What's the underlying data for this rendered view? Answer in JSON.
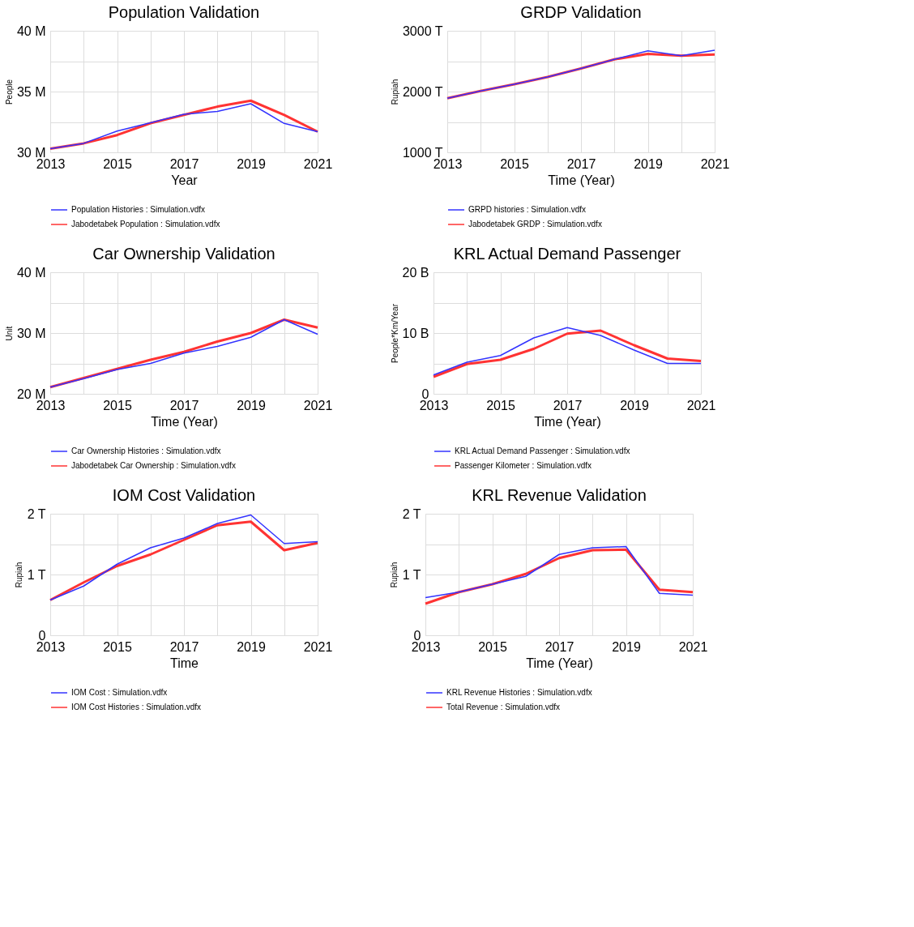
{
  "chart_data": [
    {
      "type": "line",
      "title": "Population Validation",
      "xlabel": "Year",
      "ylabel": "People",
      "x": [
        2013,
        2014,
        2015,
        2016,
        2017,
        2018,
        2019,
        2020,
        2021
      ],
      "series": [
        {
          "name": "Population Histories : Simulation.vdfx",
          "color": "#3333ff",
          "values": [
            30.3,
            30.74,
            31.75,
            32.44,
            33.14,
            33.37,
            34.0,
            32.38,
            31.7
          ]
        },
        {
          "name": "Jabodetabek Population : Simulation.vdfx",
          "color": "#ff3333",
          "values": [
            30.3,
            30.74,
            31.42,
            32.4,
            33.08,
            33.76,
            34.25,
            33.08,
            31.7
          ]
        }
      ],
      "xlim": [
        2013,
        2021
      ],
      "xticks": [
        2013,
        {
          "value": 2014,
          "label": null
        },
        2015,
        {
          "value": 2016,
          "label": null
        },
        2017,
        {
          "value": 2018,
          "label": null
        },
        2019,
        {
          "value": 2020,
          "label": null
        },
        2021
      ],
      "ylim": [
        30,
        40
      ],
      "yticks": [
        {
          "value": 30,
          "label": "30 M"
        },
        {
          "value": 32.5,
          "label": null
        },
        {
          "value": 35,
          "label": "35 M"
        },
        {
          "value": 37.5,
          "label": null
        },
        {
          "value": 40,
          "label": "40 M"
        }
      ],
      "grid": true,
      "legend": "bottom",
      "marker": "none",
      "line_style": "solid"
    },
    {
      "type": "line",
      "title": "GRDP Validation",
      "xlabel": "Time (Year)",
      "ylabel": "Rupiah",
      "x": [
        2013,
        2014,
        2015,
        2016,
        2017,
        2018,
        2019,
        2020,
        2021
      ],
      "series": [
        {
          "name": "GRPD histories : Simulation.vdfx",
          "color": "#3333ff",
          "values": [
            1890,
            2010,
            2120,
            2240,
            2380,
            2530,
            2670,
            2590,
            2680
          ]
        },
        {
          "name": "Jabodetabek GRDP : Simulation.vdfx",
          "color": "#ff3333",
          "values": [
            1890,
            2010,
            2120,
            2240,
            2380,
            2530,
            2620,
            2590,
            2610
          ]
        }
      ],
      "xlim": [
        2013,
        2021
      ],
      "xticks": [
        2013,
        {
          "value": 2014,
          "label": null
        },
        2015,
        {
          "value": 2016,
          "label": null
        },
        2017,
        {
          "value": 2018,
          "label": null
        },
        2019,
        {
          "value": 2020,
          "label": null
        },
        2021
      ],
      "ylim": [
        1000,
        3000
      ],
      "yticks": [
        {
          "value": 1000,
          "label": "1000 T"
        },
        {
          "value": 1500,
          "label": null
        },
        {
          "value": 2000,
          "label": "2000 T"
        },
        {
          "value": 2500,
          "label": null
        },
        {
          "value": 3000,
          "label": "3000 T"
        }
      ],
      "grid": true,
      "legend": "bottom",
      "marker": "none",
      "line_style": "solid"
    },
    {
      "type": "line",
      "title": "Car Ownership Validation",
      "xlabel": "Time (Year)",
      "ylabel": "Unit",
      "x": [
        2013,
        2014,
        2015,
        2016,
        2017,
        2018,
        2019,
        2020,
        2021
      ],
      "series": [
        {
          "name": "Car Ownership Histories : Simulation.vdfx",
          "color": "#3333ff",
          "values": [
            21.1,
            22.5,
            24.0,
            25.0,
            26.7,
            27.8,
            29.3,
            32.2,
            29.8
          ]
        },
        {
          "name": "Jabodetabek Car Ownership : Simulation.vdfx",
          "color": "#ff3333",
          "values": [
            21.1,
            22.6,
            24.1,
            25.6,
            26.9,
            28.6,
            30.0,
            32.2,
            30.9
          ]
        }
      ],
      "xlim": [
        2013,
        2021
      ],
      "xticks": [
        2013,
        {
          "value": 2014,
          "label": null
        },
        2015,
        {
          "value": 2016,
          "label": null
        },
        2017,
        {
          "value": 2018,
          "label": null
        },
        2019,
        {
          "value": 2020,
          "label": null
        },
        2021
      ],
      "ylim": [
        20,
        40
      ],
      "yticks": [
        {
          "value": 20,
          "label": "20 M"
        },
        {
          "value": 25,
          "label": null
        },
        {
          "value": 30,
          "label": "30 M"
        },
        {
          "value": 35,
          "label": null
        },
        {
          "value": 40,
          "label": "40 M"
        }
      ],
      "grid": true,
      "legend": "bottom",
      "marker": "none",
      "line_style": "solid"
    },
    {
      "type": "line",
      "title": "KRL Actual Demand Passenger",
      "xlabel": "Time (Year)",
      "ylabel": "People*Km/Year",
      "x": [
        2013,
        2014,
        2015,
        2016,
        2017,
        2018,
        2019,
        2020,
        2021
      ],
      "series": [
        {
          "name": "KRL Actual Demand Passenger : Simulation.vdfx",
          "color": "#3333ff",
          "values": [
            3.1,
            5.2,
            6.3,
            9.2,
            10.9,
            9.6,
            7.2,
            5.0,
            5.0
          ]
        },
        {
          "name": "Passenger Kilometer : Simulation.vdfx",
          "color": "#ff3333",
          "values": [
            2.8,
            4.9,
            5.6,
            7.4,
            9.9,
            10.4,
            8.0,
            5.8,
            5.4
          ]
        }
      ],
      "xlim": [
        2013,
        2021
      ],
      "xticks": [
        2013,
        {
          "value": 2014,
          "label": null
        },
        2015,
        {
          "value": 2016,
          "label": null
        },
        2017,
        {
          "value": 2018,
          "label": null
        },
        2019,
        {
          "value": 2020,
          "label": null
        },
        2021
      ],
      "ylim": [
        0,
        20
      ],
      "yticks": [
        0,
        {
          "value": 5,
          "label": null
        },
        {
          "value": 10,
          "label": "10 B"
        },
        {
          "value": 15,
          "label": null
        },
        {
          "value": 20,
          "label": "20 B"
        }
      ],
      "grid": true,
      "legend": "bottom",
      "marker": "none",
      "line_style": "solid"
    },
    {
      "type": "line",
      "title": "IOM Cost Validation",
      "xlabel": "Time",
      "ylabel": "Rupiah",
      "x": [
        2013,
        2014,
        2015,
        2016,
        2017,
        2018,
        2019,
        2020,
        2021
      ],
      "series": [
        {
          "name": "IOM Cost : Simulation.vdfx",
          "color": "#3333ff",
          "values": [
            0.58,
            0.81,
            1.17,
            1.44,
            1.6,
            1.84,
            1.98,
            1.51,
            1.54
          ]
        },
        {
          "name": "IOM Cost Histories : Simulation.vdfx",
          "color": "#ff3333",
          "values": [
            0.58,
            0.87,
            1.14,
            1.33,
            1.57,
            1.81,
            1.87,
            1.4,
            1.52
          ]
        }
      ],
      "xlim": [
        2013,
        2021
      ],
      "xticks": [
        2013,
        {
          "value": 2014,
          "label": null
        },
        2015,
        {
          "value": 2016,
          "label": null
        },
        2017,
        {
          "value": 2018,
          "label": null
        },
        2019,
        {
          "value": 2020,
          "label": null
        },
        2021
      ],
      "ylim": [
        0,
        2
      ],
      "yticks": [
        0,
        {
          "value": 0.5,
          "label": null
        },
        {
          "value": 1,
          "label": "1 T"
        },
        {
          "value": 1.5,
          "label": null
        },
        {
          "value": 2,
          "label": "2 T"
        }
      ],
      "grid": true,
      "legend": "bottom",
      "marker": "none",
      "line_style": "solid"
    },
    {
      "type": "line",
      "title": "KRL Revenue Validation",
      "xlabel": "Time (Year)",
      "ylabel": "Rupiah",
      "x": [
        2013,
        2014,
        2015,
        2016,
        2017,
        2018,
        2019,
        2020,
        2021
      ],
      "series": [
        {
          "name": "KRL Revenue Histories : Simulation.vdfx",
          "color": "#3333ff",
          "values": [
            0.62,
            0.71,
            0.84,
            0.97,
            1.33,
            1.44,
            1.46,
            0.69,
            0.66
          ]
        },
        {
          "name": "Total Revenue : Simulation.vdfx",
          "color": "#ff3333",
          "values": [
            0.52,
            0.71,
            0.84,
            1.01,
            1.27,
            1.4,
            1.41,
            0.75,
            0.71
          ]
        }
      ],
      "xlim": [
        2013,
        2021
      ],
      "xticks": [
        2013,
        {
          "value": 2014,
          "label": null
        },
        2015,
        {
          "value": 2016,
          "label": null
        },
        2017,
        {
          "value": 2018,
          "label": null
        },
        2019,
        {
          "value": 2020,
          "label": null
        },
        2021
      ],
      "ylim": [
        0,
        2
      ],
      "yticks": [
        0,
        {
          "value": 0.5,
          "label": null
        },
        {
          "value": 1,
          "label": "1 T"
        },
        {
          "value": 1.5,
          "label": null
        },
        {
          "value": 2,
          "label": "2 T"
        }
      ],
      "grid": true,
      "legend": "bottom",
      "marker": "none",
      "line_style": "solid"
    }
  ]
}
